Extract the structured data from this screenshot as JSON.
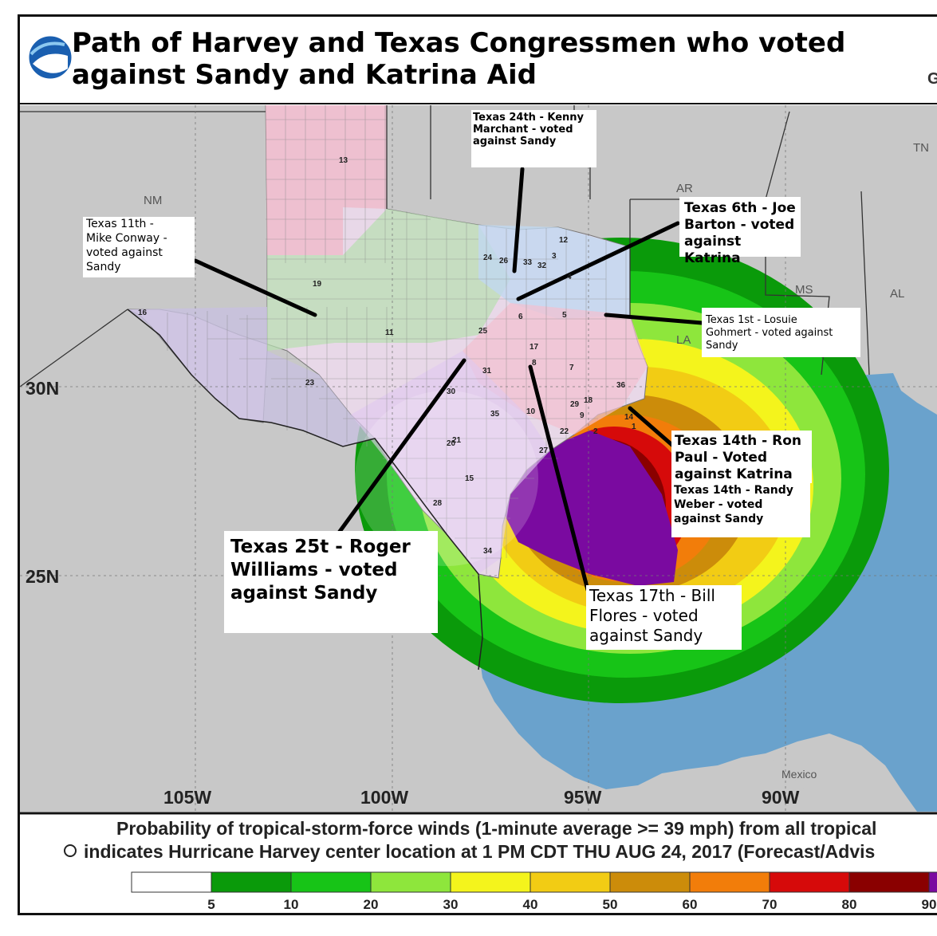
{
  "title": "Path of Harvey and Texas Congressmen who voted\nagainst Sandy and Katrina Aid",
  "labels": [
    {
      "id": "tx24",
      "text": "Texas 24th - Kenny\nMarchant - voted\nagainst Sandy"
    },
    {
      "id": "tx6",
      "text": "Texas 6th - Joe\nBarton - voted\nagainst Katrina"
    },
    {
      "id": "tx11",
      "text": "Texas 11th -\nMike Conway -\nvoted against\nSandy"
    },
    {
      "id": "tx1",
      "text": "Texas 1st - Losuie\nGohmert - voted against\nSandy"
    },
    {
      "id": "tx14a",
      "text": "Texas 14th - Ron\nPaul - Voted\nagainst Katrina"
    },
    {
      "id": "tx14b",
      "text": "Texas 14th - Randy\nWeber - voted\nagainst Sandy"
    },
    {
      "id": "tx25",
      "text": "Texas 25t - Roger\nWilliams - voted\nagainst Sandy"
    },
    {
      "id": "tx17",
      "text": "Texas 17th - Bill\nFlores - voted\nagainst Sandy"
    }
  ],
  "map": {
    "states": [
      "NM",
      "AR",
      "TN",
      "MS",
      "AL",
      "LA"
    ],
    "country": "Mexico",
    "lat_labels": [
      "30N",
      "25N"
    ],
    "lon_labels": [
      "105W",
      "100W",
      "95W",
      "90W"
    ],
    "partial_edge_letter": "G",
    "district_numbers": [
      "13",
      "19",
      "16",
      "11",
      "23",
      "25",
      "31",
      "17",
      "10",
      "6",
      "5",
      "32",
      "26",
      "24",
      "36",
      "14",
      "7",
      "22",
      "27",
      "35",
      "21",
      "20",
      "28",
      "15",
      "34",
      "18",
      "29",
      "9",
      "12",
      "33",
      "30",
      "3",
      "4",
      "8",
      "2",
      "1"
    ]
  },
  "footer": {
    "line1": "Probability of tropical-storm-force winds (1-minute average >= 39 mph) from all tropical",
    "line2": "indicates Hurricane Harvey center location at 1 PM CDT THU AUG 24, 2017 (Forecast/Advis"
  },
  "legend": {
    "ticks": [
      "5",
      "10",
      "20",
      "30",
      "40",
      "50",
      "60",
      "70",
      "80",
      "90"
    ],
    "colors": [
      "#ffffff",
      "#0a9a0a",
      "#17c417",
      "#8ee63c",
      "#f4f41c",
      "#f2cc14",
      "#cc8c0a",
      "#f27d0a",
      "#d60a0a",
      "#8a0000",
      "#7a0aa0"
    ]
  },
  "colors": {
    "ocean": "#6aa2cc",
    "land": "#c8c8c8",
    "purple_core": "#7a0aa0"
  }
}
